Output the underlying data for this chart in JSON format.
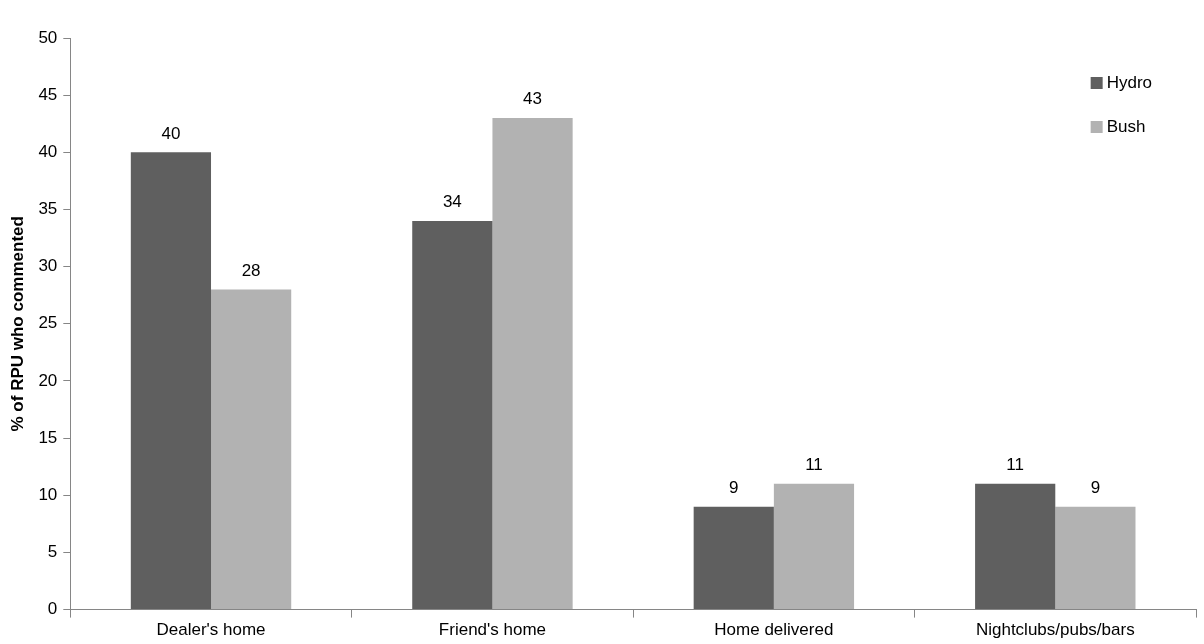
{
  "chart_data": {
    "type": "bar",
    "ylabel": "% of RPU who commented",
    "categories": [
      "Dealer's home",
      "Friend's home",
      "Home delivered",
      "Nightclubs/pubs/bars"
    ],
    "series": [
      {
        "name": "Hydro",
        "color": "#5f5f5f",
        "values": [
          40,
          34,
          9,
          11
        ]
      },
      {
        "name": "Bush",
        "color": "#b2b2b2",
        "values": [
          28,
          43,
          11,
          9
        ]
      }
    ],
    "ylim": [
      0,
      50
    ],
    "yticks": [
      0,
      5,
      10,
      15,
      20,
      25,
      30,
      35,
      40,
      45,
      50
    ],
    "grid": false,
    "legend": "top right",
    "data_labels": true
  }
}
